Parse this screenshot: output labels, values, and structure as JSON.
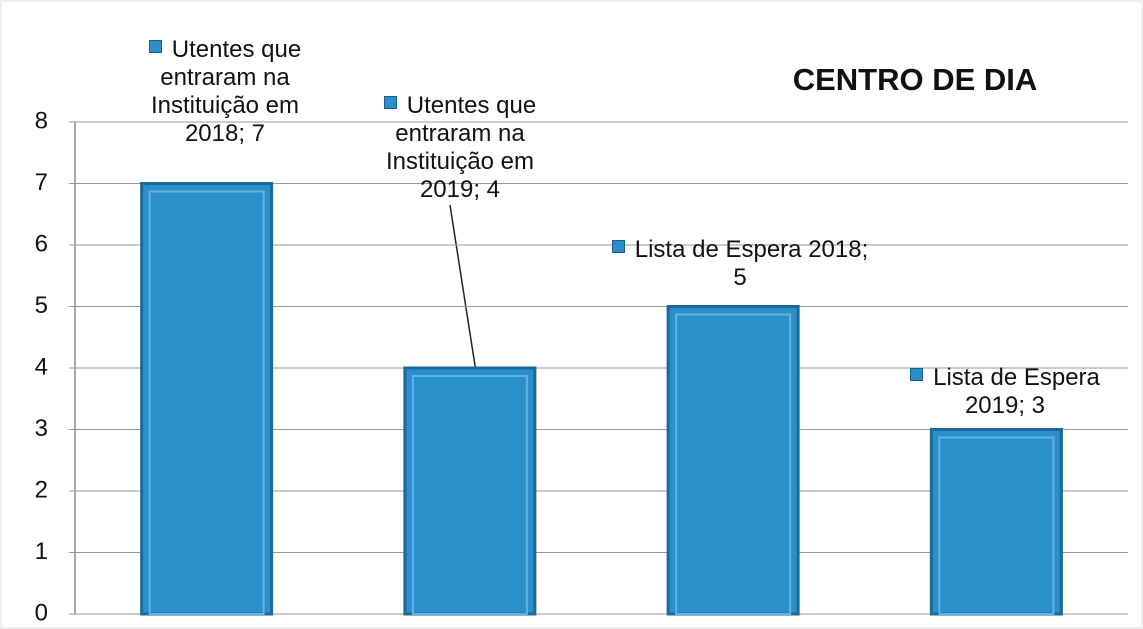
{
  "chart_data": {
    "type": "bar",
    "title": "CENTRO DE DIA",
    "values": [
      7,
      4,
      5,
      3
    ],
    "value_labels": [
      "Utentes que entraram na Instituição em 2018; 7",
      "Utentes que entraram na Instituição em 2019; 4",
      "Lista de Espera 2018; 5",
      "Lista de Espera 2019; 3"
    ],
    "color": "#2b8fc9",
    "ylim": [
      0,
      8
    ],
    "yticks": [
      0,
      1,
      2,
      3,
      4,
      5,
      6,
      7,
      8
    ],
    "grid": true
  }
}
